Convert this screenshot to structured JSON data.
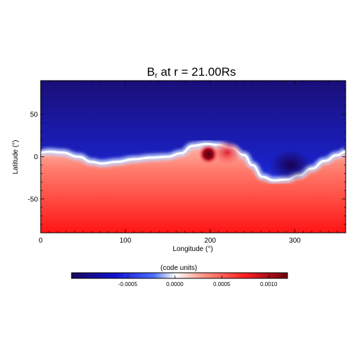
{
  "chart_data": {
    "type": "heatmap",
    "title": "B",
    "title_sub": "r",
    "title_suffix": " at r = 21.00Rs",
    "xlabel": "Longitude (°)",
    "ylabel": "Latitude (°)",
    "xlim": [
      0,
      360
    ],
    "ylim": [
      -90,
      90
    ],
    "x_ticks": [
      0,
      100,
      200,
      300
    ],
    "y_ticks": [
      50,
      0,
      -50
    ],
    "x_tick_labels": [
      "0",
      "100",
      "200",
      "300"
    ],
    "y_tick_labels": [
      "50",
      "0",
      "-50"
    ],
    "neutral_line": {
      "longitude": [
        0,
        10,
        25,
        45,
        60,
        72,
        90,
        110,
        130,
        150,
        165,
        180,
        195,
        210,
        225,
        240,
        250,
        262,
        275,
        290,
        305,
        320,
        335,
        350,
        360
      ],
      "latitude": [
        5,
        6,
        5,
        0,
        -6,
        -8,
        -6,
        -3,
        -1,
        0,
        4,
        13,
        15,
        14,
        10,
        2,
        -10,
        -24,
        -28,
        -27,
        -22,
        -14,
        -5,
        2,
        6
      ]
    },
    "features": [
      {
        "type": "min",
        "longitude": 198,
        "latitude": 3,
        "value": 0.0012
      },
      {
        "type": "max",
        "longitude": 295,
        "latitude": -10,
        "value": -0.0009
      },
      {
        "type": "lobe",
        "longitude": 220,
        "latitude": 5,
        "value": 0.0008
      }
    ],
    "colorbar": {
      "label": "(code units)",
      "range": [
        -0.0011,
        0.0012
      ],
      "ticks": [
        -0.0005,
        0.0,
        0.0005,
        0.001
      ],
      "tick_labels": [
        "-0.0005",
        "0.0000",
        "0.0005",
        "0.0010"
      ]
    },
    "colors": {
      "negative_dark": "#1a0066",
      "negative": "#0026ff",
      "zero": "#ffffff",
      "positive": "#ff1a1a",
      "positive_dark": "#7a0010"
    }
  }
}
